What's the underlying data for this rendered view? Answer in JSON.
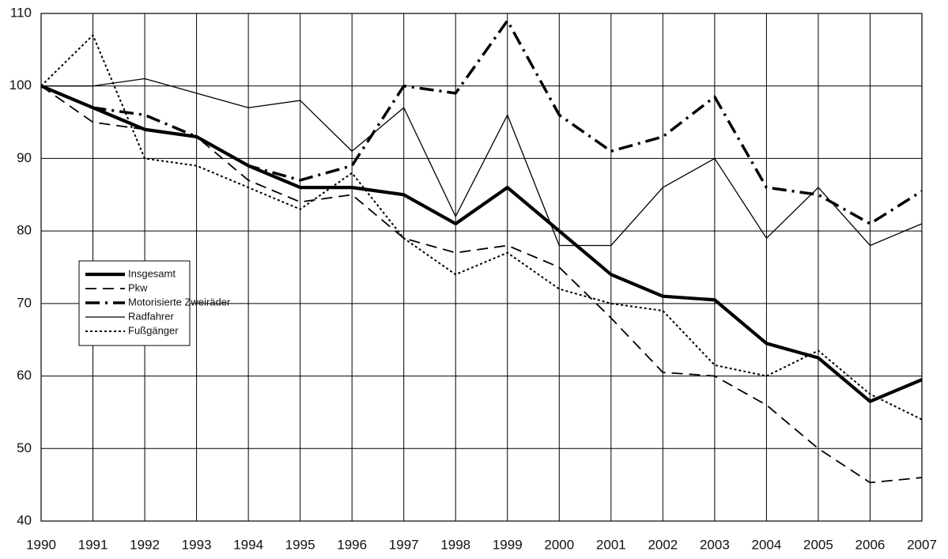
{
  "chart_data": {
    "type": "line",
    "x": [
      1990,
      1991,
      1992,
      1993,
      1994,
      1995,
      1996,
      1997,
      1998,
      1999,
      2000,
      2001,
      2002,
      2003,
      2004,
      2005,
      2006,
      2007
    ],
    "series": [
      {
        "name": "Insgesamt",
        "color": "#000000",
        "values": [
          100,
          97,
          94,
          93,
          89,
          86,
          86,
          85,
          81,
          86,
          80,
          74,
          71,
          70.5,
          64.5,
          62.5,
          56.5,
          59.5
        ]
      },
      {
        "name": "Pkw",
        "color": "#000000",
        "values": [
          100,
          95,
          94,
          93,
          87,
          84,
          85,
          79,
          77,
          78,
          75,
          68,
          60.5,
          60,
          56,
          50,
          45.3,
          46
        ]
      },
      {
        "name": "Motorisierte Zweiräder",
        "color": "#000000",
        "values": [
          100,
          97,
          96,
          93,
          89,
          87,
          89,
          100,
          99,
          109,
          96,
          91,
          93,
          98.5,
          86,
          85,
          81,
          85.5
        ]
      },
      {
        "name": "Radfahrer",
        "color": "#000000",
        "values": [
          100,
          100,
          101,
          99,
          97,
          98,
          91,
          97,
          82,
          96,
          78,
          78,
          86,
          90,
          79,
          86,
          78,
          81
        ]
      },
      {
        "name": "Fußgänger",
        "color": "#000000",
        "values": [
          100,
          107,
          90,
          89,
          86,
          83,
          88,
          79,
          74,
          77,
          72,
          70,
          69,
          61.5,
          60,
          63.5,
          57.5,
          54
        ]
      }
    ],
    "xlim": [
      1990,
      2007
    ],
    "xticks": [
      1990,
      1991,
      1992,
      1993,
      1994,
      1995,
      1996,
      1997,
      1998,
      1999,
      2000,
      2001,
      2002,
      2003,
      2004,
      2005,
      2006,
      2007
    ],
    "ylim": [
      40,
      110
    ],
    "yticks": [
      40,
      50,
      60,
      70,
      80,
      90,
      100,
      110
    ],
    "grid": true
  }
}
